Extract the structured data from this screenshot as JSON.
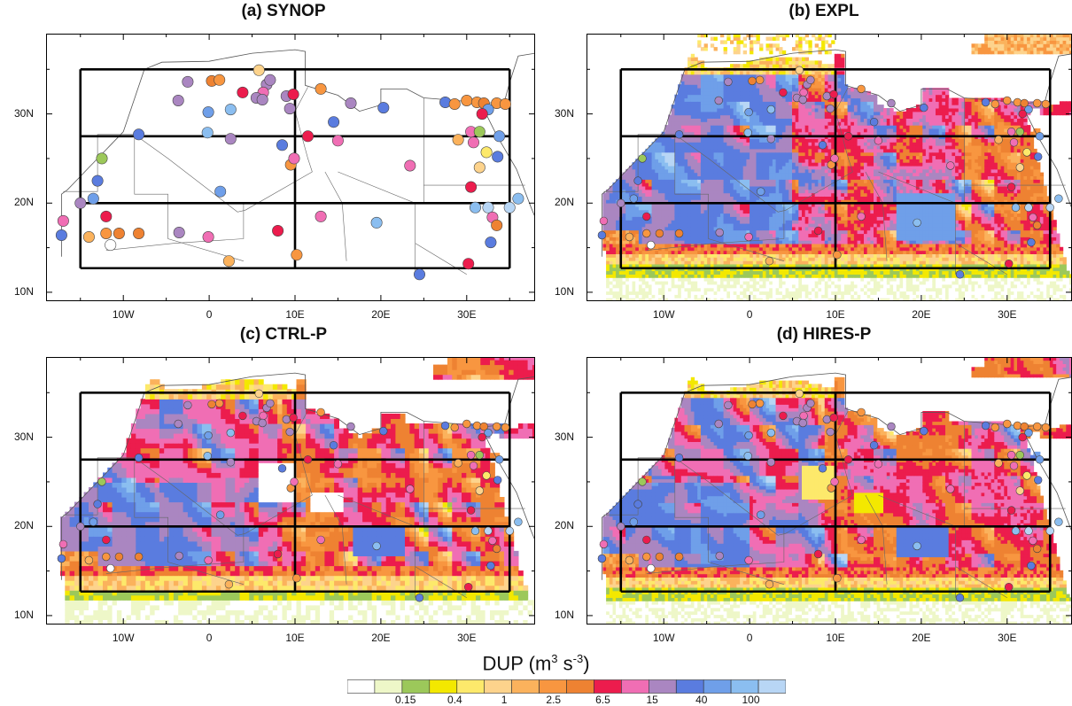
{
  "panels": [
    {
      "title": "(a) SYNOP",
      "field": "none"
    },
    {
      "title": "(b) EXPL",
      "field": "expl"
    },
    {
      "title": "(c) CTRL-P",
      "field": "ctrl"
    },
    {
      "title": "(d) HIRES-P",
      "field": "hires"
    }
  ],
  "axes": {
    "lon_ticks": [
      "10W",
      "0",
      "10E",
      "20E",
      "30E"
    ],
    "lat_ticks": [
      "30N",
      "20N",
      "10N"
    ],
    "lon_range": [
      -19,
      39
    ],
    "lat_range": [
      9,
      39
    ]
  },
  "colorbar": {
    "title": "DUP (m",
    "title_sup1": "3",
    "title_mid": " s",
    "title_sup2": "-3",
    "title_end": ")",
    "labels": [
      "0.15",
      "0.4",
      "1",
      "2.5",
      "6.5",
      "15",
      "40",
      "100"
    ],
    "colors": [
      "#ffffff",
      "#eef7c8",
      "#9cc85a",
      "#f3e800",
      "#fde96b",
      "#fdd38c",
      "#fbb25c",
      "#f89640",
      "#ee8232",
      "#ec1c4d",
      "#f06eb4",
      "#aa86c1",
      "#5a7cdf",
      "#6f9fe9",
      "#8bbef0",
      "#b8d6f5"
    ]
  },
  "regions": {
    "lon_bounds": [
      -15,
      10,
      35
    ],
    "lat_bounds": [
      12.7,
      20,
      27.5,
      35
    ]
  },
  "stations": [
    {
      "lon": -2.5,
      "lat": 33.6,
      "c": 11
    },
    {
      "lon": 0.3,
      "lat": 33.7,
      "c": 8
    },
    {
      "lon": 1.2,
      "lat": 33.8,
      "c": 7
    },
    {
      "lon": 3.9,
      "lat": 32.4,
      "c": 9
    },
    {
      "lon": 5.8,
      "lat": 34.9,
      "c": 5
    },
    {
      "lon": 6.7,
      "lat": 33.3,
      "c": 11
    },
    {
      "lon": 6.3,
      "lat": 32.4,
      "c": 10
    },
    {
      "lon": 7.1,
      "lat": 33.8,
      "c": 11
    },
    {
      "lon": 5.5,
      "lat": 31.8,
      "c": 11
    },
    {
      "lon": 6.2,
      "lat": 31.6,
      "c": 11
    },
    {
      "lon": 9.0,
      "lat": 32.0,
      "c": 11
    },
    {
      "lon": 9.8,
      "lat": 32.2,
      "c": 9
    },
    {
      "lon": 9.4,
      "lat": 30.6,
      "c": 11
    },
    {
      "lon": -3.6,
      "lat": 31.5,
      "c": 11
    },
    {
      "lon": -0.1,
      "lat": 30.2,
      "c": 13
    },
    {
      "lon": 2.5,
      "lat": 30.5,
      "c": 14
    },
    {
      "lon": -0.2,
      "lat": 27.9,
      "c": 14
    },
    {
      "lon": 2.5,
      "lat": 27.2,
      "c": 11
    },
    {
      "lon": -8.2,
      "lat": 27.7,
      "c": 12
    },
    {
      "lon": 8.5,
      "lat": 26.5,
      "c": 12
    },
    {
      "lon": 9.5,
      "lat": 24.3,
      "c": 7
    },
    {
      "lon": 9.9,
      "lat": 25.0,
      "c": 10
    },
    {
      "lon": 13.0,
      "lat": 32.8,
      "c": 7
    },
    {
      "lon": 14.5,
      "lat": 29.1,
      "c": 12
    },
    {
      "lon": 11.5,
      "lat": 27.5,
      "c": 9
    },
    {
      "lon": 16.5,
      "lat": 31.2,
      "c": 11
    },
    {
      "lon": 20.3,
      "lat": 30.7,
      "c": 12
    },
    {
      "lon": 15.0,
      "lat": 27.0,
      "c": 10
    },
    {
      "lon": 13.0,
      "lat": 18.5,
      "c": 10
    },
    {
      "lon": 23.4,
      "lat": 24.2,
      "c": 10
    },
    {
      "lon": 19.5,
      "lat": 17.8,
      "c": 14
    },
    {
      "lon": 27.5,
      "lat": 31.3,
      "c": 12
    },
    {
      "lon": 28.6,
      "lat": 31.1,
      "c": 7
    },
    {
      "lon": 30.0,
      "lat": 31.5,
      "c": 7
    },
    {
      "lon": 31.2,
      "lat": 31.3,
      "c": 7
    },
    {
      "lon": 32.0,
      "lat": 31.2,
      "c": 8
    },
    {
      "lon": 33.5,
      "lat": 31.2,
      "c": 7
    },
    {
      "lon": 34.5,
      "lat": 31.1,
      "c": 7
    },
    {
      "lon": 32.5,
      "lat": 30.5,
      "c": 13
    },
    {
      "lon": 31.8,
      "lat": 30.0,
      "c": 9
    },
    {
      "lon": 29.0,
      "lat": 27.1,
      "c": 6
    },
    {
      "lon": 30.5,
      "lat": 28.0,
      "c": 10
    },
    {
      "lon": 31.5,
      "lat": 28.0,
      "c": 2
    },
    {
      "lon": 33.8,
      "lat": 27.5,
      "c": 13
    },
    {
      "lon": 30.8,
      "lat": 26.8,
      "c": 10
    },
    {
      "lon": 32.3,
      "lat": 25.7,
      "c": 4
    },
    {
      "lon": 33.6,
      "lat": 25.2,
      "c": 12
    },
    {
      "lon": 31.5,
      "lat": 24.0,
      "c": 5
    },
    {
      "lon": 30.5,
      "lat": 21.8,
      "c": 9
    },
    {
      "lon": 31.0,
      "lat": 19.5,
      "c": 14
    },
    {
      "lon": 32.5,
      "lat": 19.5,
      "c": 15
    },
    {
      "lon": 33.0,
      "lat": 18.4,
      "c": 10
    },
    {
      "lon": 33.5,
      "lat": 17.5,
      "c": 8
    },
    {
      "lon": 32.8,
      "lat": 15.6,
      "c": 12
    },
    {
      "lon": 30.2,
      "lat": 13.2,
      "c": 9
    },
    {
      "lon": 24.5,
      "lat": 12.0,
      "c": 12
    },
    {
      "lon": 35.0,
      "lat": 19.5,
      "c": 15
    },
    {
      "lon": 38.5,
      "lat": 15.5,
      "c": 7
    },
    {
      "lon": 36.0,
      "lat": 20.5,
      "c": 14
    },
    {
      "lon": -12.5,
      "lat": 25.0,
      "c": 2
    },
    {
      "lon": -13.0,
      "lat": 22.5,
      "c": 12
    },
    {
      "lon": -15.0,
      "lat": 20.0,
      "c": 11
    },
    {
      "lon": -13.5,
      "lat": 20.5,
      "c": 13
    },
    {
      "lon": -17.0,
      "lat": 18.0,
      "c": 10
    },
    {
      "lon": -12.0,
      "lat": 18.5,
      "c": 9
    },
    {
      "lon": -17.2,
      "lat": 16.4,
      "c": 12
    },
    {
      "lon": -14.0,
      "lat": 16.2,
      "c": 6
    },
    {
      "lon": -12.0,
      "lat": 16.6,
      "c": 7
    },
    {
      "lon": -10.5,
      "lat": 16.6,
      "c": 8
    },
    {
      "lon": -8.2,
      "lat": 16.6,
      "c": 8
    },
    {
      "lon": -11.5,
      "lat": 15.3,
      "c": 0
    },
    {
      "lon": -3.5,
      "lat": 16.7,
      "c": 11
    },
    {
      "lon": -0.1,
      "lat": 16.2,
      "c": 10
    },
    {
      "lon": 1.3,
      "lat": 21.3,
      "c": 13
    },
    {
      "lon": 2.3,
      "lat": 13.5,
      "c": 6
    },
    {
      "lon": 8.0,
      "lat": 16.9,
      "c": 9
    },
    {
      "lon": 10.2,
      "lat": 14.2,
      "c": 7
    }
  ]
}
